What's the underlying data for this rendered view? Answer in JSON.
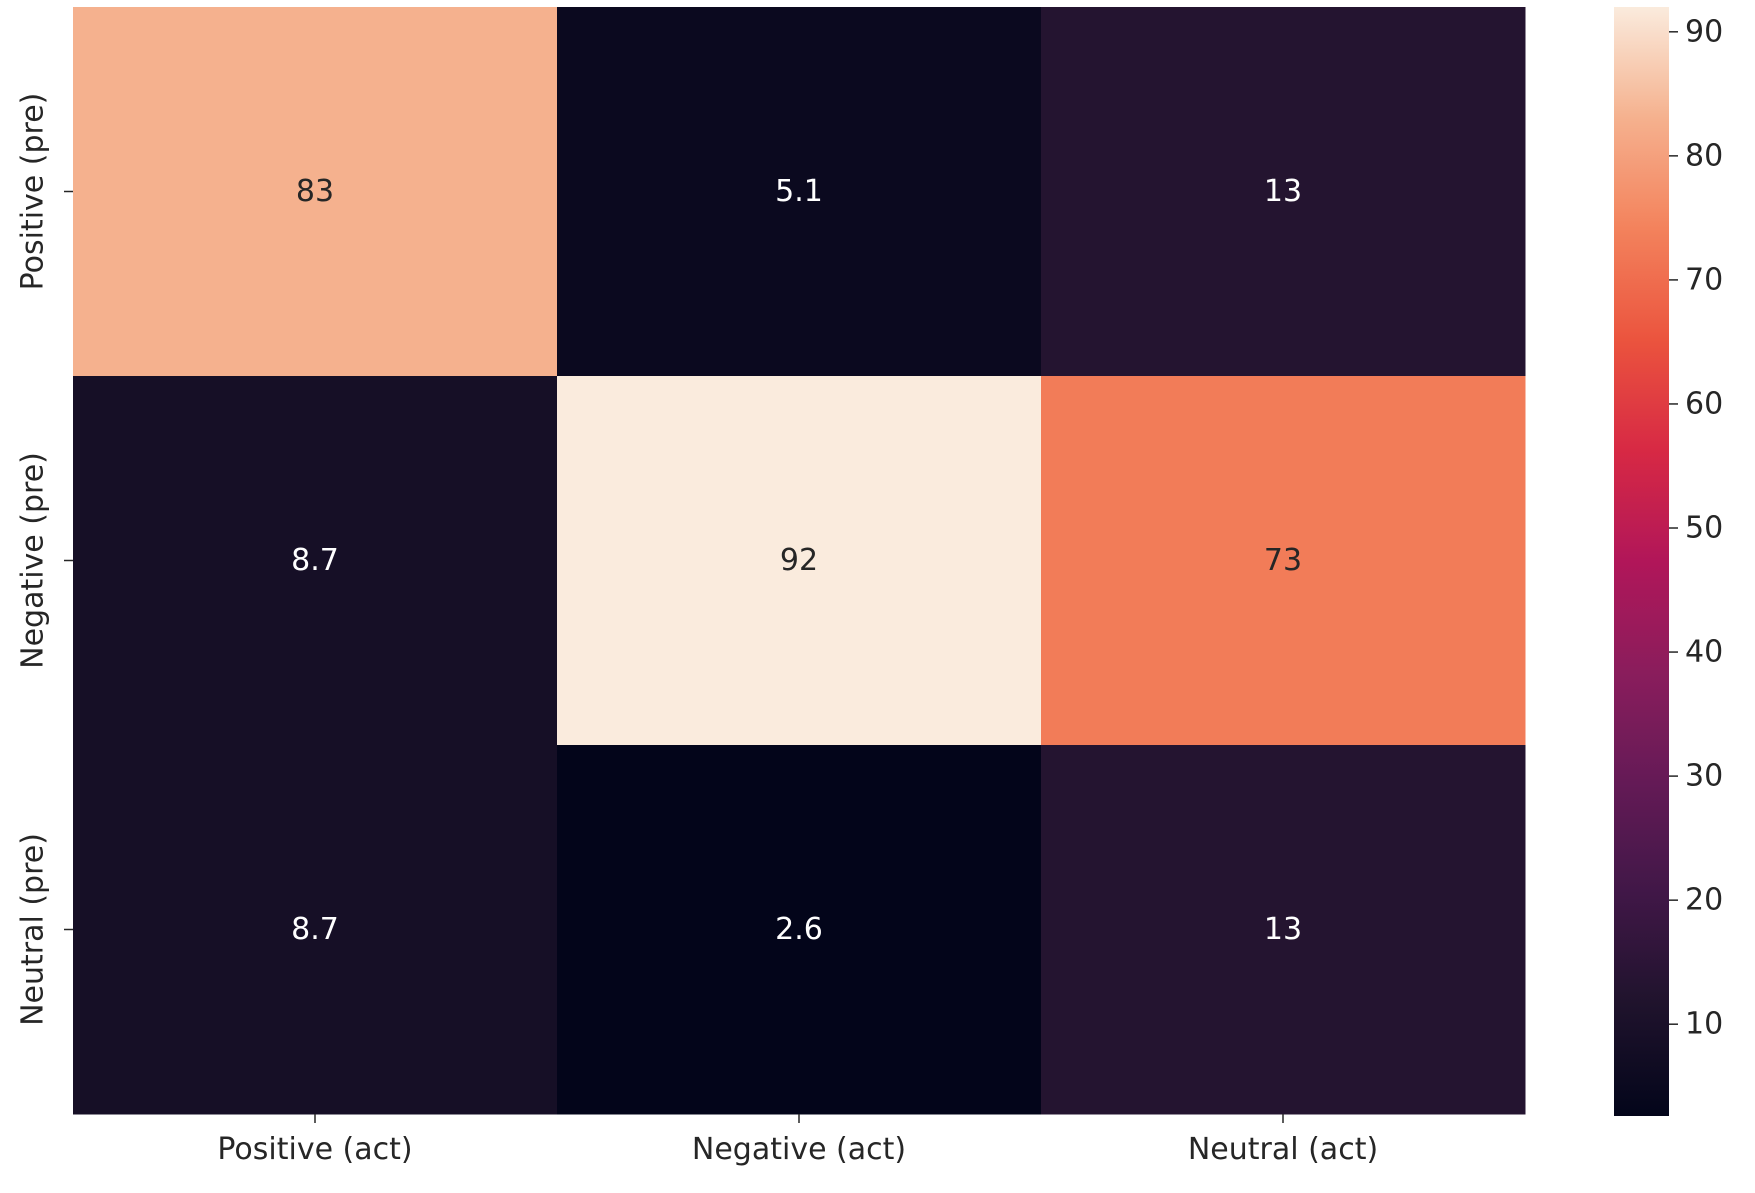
{
  "chart_data": {
    "type": "heatmap",
    "title": "",
    "xlabel": "",
    "ylabel": "",
    "x_categories": [
      "Positive (act)",
      "Negative (act)",
      "Neutral (act)"
    ],
    "y_categories": [
      "Positive (pre)",
      "Negative (pre)",
      "Neutral (pre)"
    ],
    "values": [
      [
        83,
        5.1,
        13
      ],
      [
        8.7,
        92,
        73
      ],
      [
        8.7,
        2.6,
        13
      ]
    ],
    "cell_labels": [
      [
        "83",
        "5.1",
        "13"
      ],
      [
        "8.7",
        "92",
        "73"
      ],
      [
        "8.7",
        "2.6",
        "13"
      ]
    ],
    "colormap": "rocket",
    "colorbar": {
      "range": [
        2.6,
        92
      ],
      "ticks": [
        10,
        20,
        30,
        40,
        50,
        60,
        70,
        80,
        90
      ]
    },
    "colors": {
      "light_text": "#ffffff",
      "dark_text": "#262626"
    }
  }
}
